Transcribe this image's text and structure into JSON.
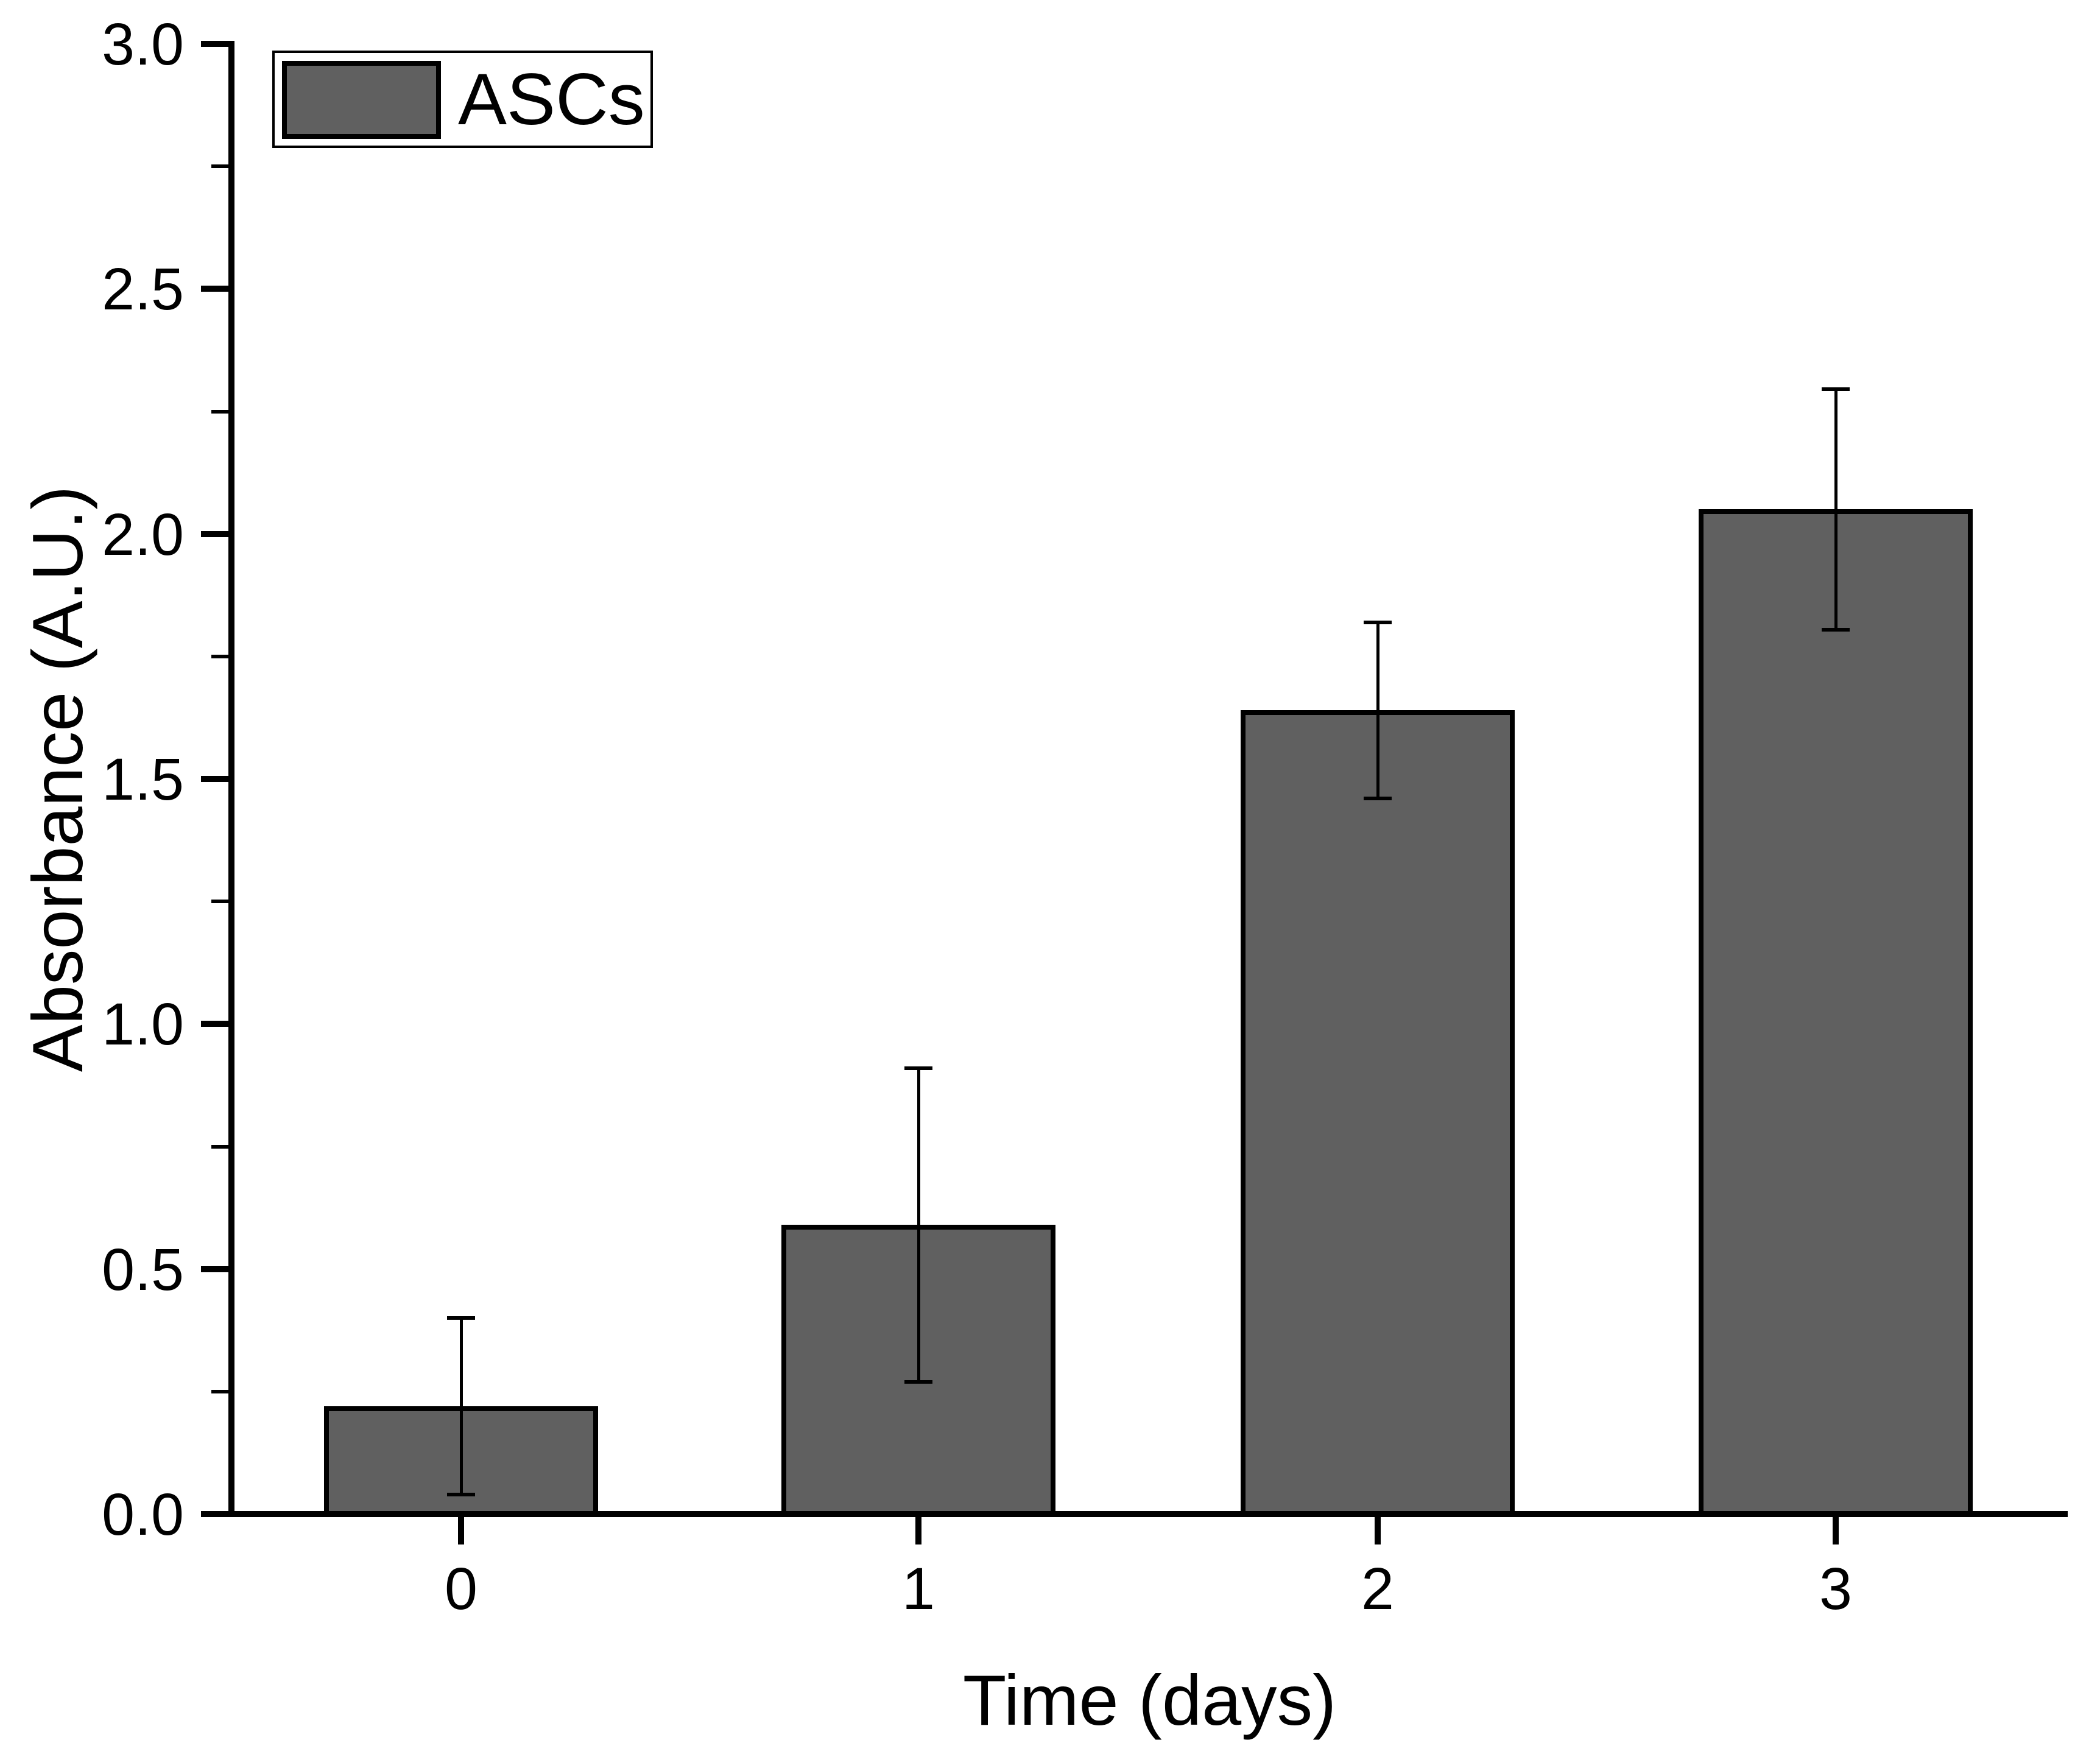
{
  "chart_data": {
    "type": "bar",
    "title": "",
    "categories": [
      "0",
      "1",
      "2",
      "3"
    ],
    "series": [
      {
        "name": "ASCs",
        "values": [
          0.22,
          0.59,
          1.64,
          2.05
        ],
        "error_plus": [
          0.18,
          0.32,
          0.18,
          0.245
        ],
        "error_minus": [
          0.18,
          0.32,
          0.18,
          0.245
        ]
      }
    ],
    "xlabel": "Time (days)",
    "ylabel": "Absorbance (A.U.)",
    "ylim": [
      0.0,
      3.0
    ],
    "y_major_tick_values": [
      0,
      0.5,
      1,
      1.5,
      2,
      2.5,
      3
    ],
    "y_major_tick_labels": [
      "0.0",
      "0.5",
      "1.0",
      "1.5",
      "2.0",
      "2.5",
      "3.0"
    ],
    "y_minor_tick_values": [
      0.25,
      0.75,
      1.25,
      1.75,
      2.25,
      2.75
    ],
    "grid": false,
    "legend_position": "top-left",
    "colors": {
      "bar_fill": "#606060",
      "bar_border": "#000000",
      "axis": "#000000",
      "background": "#ffffff",
      "text": "#000000"
    }
  }
}
